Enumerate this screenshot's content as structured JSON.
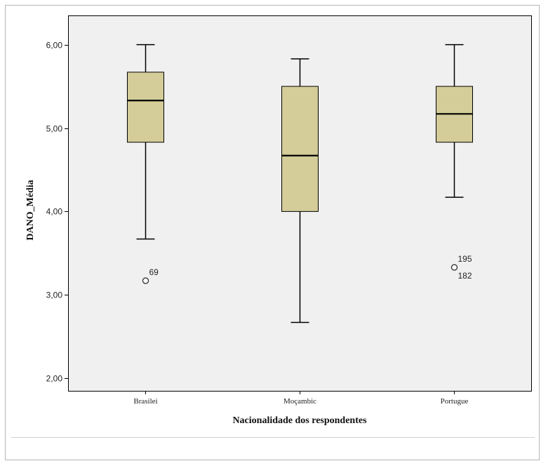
{
  "chart_data": {
    "type": "boxplot",
    "xlabel": "Nacionalidade dos respondentes",
    "ylabel": "DANO_Média",
    "ylim": [
      1.85,
      6.35
    ],
    "yticks": [
      "2,00",
      "3,00",
      "4,00",
      "5,00",
      "6,00"
    ],
    "ytick_values": [
      2,
      3,
      4,
      5,
      6
    ],
    "grid": false,
    "colors": {
      "plot_bg": "#f0f0f0",
      "box_fill": "#d4cc99",
      "line": "#000000"
    },
    "categories": [
      "Brasilei",
      "Moçambic",
      "Portugue"
    ],
    "boxes": [
      {
        "category": "Brasilei",
        "min": 3.67,
        "q1": 4.83,
        "median": 5.33,
        "q3": 5.67,
        "max": 6.0,
        "outliers": [
          {
            "value": 3.17,
            "labels": [
              "69"
            ]
          }
        ]
      },
      {
        "category": "Moçambic",
        "min": 2.67,
        "q1": 4.0,
        "median": 4.67,
        "q3": 5.5,
        "max": 5.83,
        "outliers": []
      },
      {
        "category": "Portugue",
        "min": 4.17,
        "q1": 4.83,
        "median": 5.17,
        "q3": 5.5,
        "max": 6.0,
        "outliers": [
          {
            "value": 3.33,
            "labels": [
              "195",
              "182"
            ]
          }
        ]
      }
    ]
  }
}
